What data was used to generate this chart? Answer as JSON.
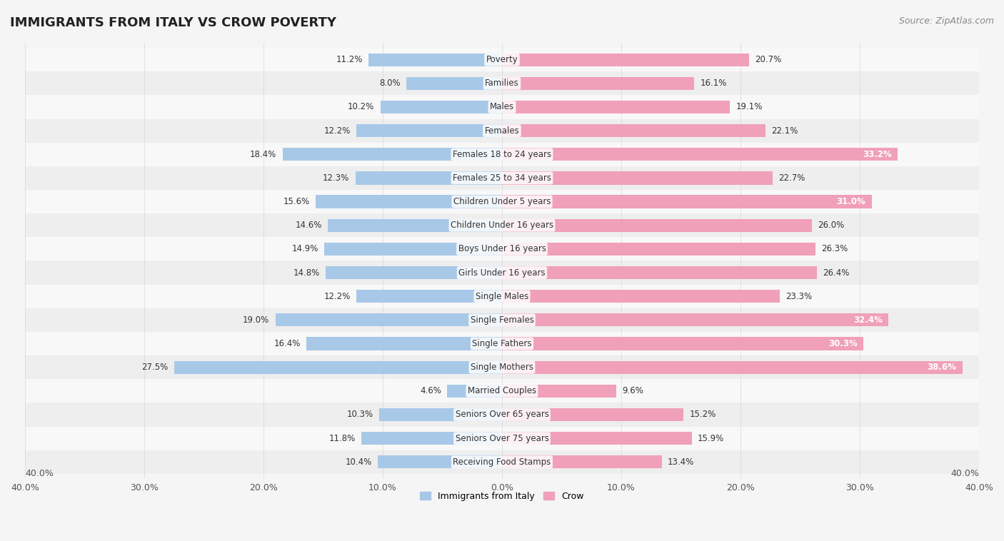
{
  "title": "IMMIGRANTS FROM ITALY VS CROW POVERTY",
  "source": "Source: ZipAtlas.com",
  "categories": [
    "Poverty",
    "Families",
    "Males",
    "Females",
    "Females 18 to 24 years",
    "Females 25 to 34 years",
    "Children Under 5 years",
    "Children Under 16 years",
    "Boys Under 16 years",
    "Girls Under 16 years",
    "Single Males",
    "Single Females",
    "Single Fathers",
    "Single Mothers",
    "Married Couples",
    "Seniors Over 65 years",
    "Seniors Over 75 years",
    "Receiving Food Stamps"
  ],
  "italy_values": [
    11.2,
    8.0,
    10.2,
    12.2,
    18.4,
    12.3,
    15.6,
    14.6,
    14.9,
    14.8,
    12.2,
    19.0,
    16.4,
    27.5,
    4.6,
    10.3,
    11.8,
    10.4
  ],
  "crow_values": [
    20.7,
    16.1,
    19.1,
    22.1,
    33.2,
    22.7,
    31.0,
    26.0,
    26.3,
    26.4,
    23.3,
    32.4,
    30.3,
    38.6,
    9.6,
    15.2,
    15.9,
    13.4
  ],
  "italy_color": "#a8c8e8",
  "crow_color": "#f0a0b8",
  "axis_limit": 40.0,
  "row_bg_light": "#f8f8f8",
  "row_bg_dark": "#eeeeee",
  "title_fontsize": 13,
  "source_fontsize": 9,
  "label_fontsize": 8.5,
  "value_fontsize": 8.5,
  "legend_fontsize": 9,
  "axis_label_fontsize": 9,
  "bar_height": 0.55
}
